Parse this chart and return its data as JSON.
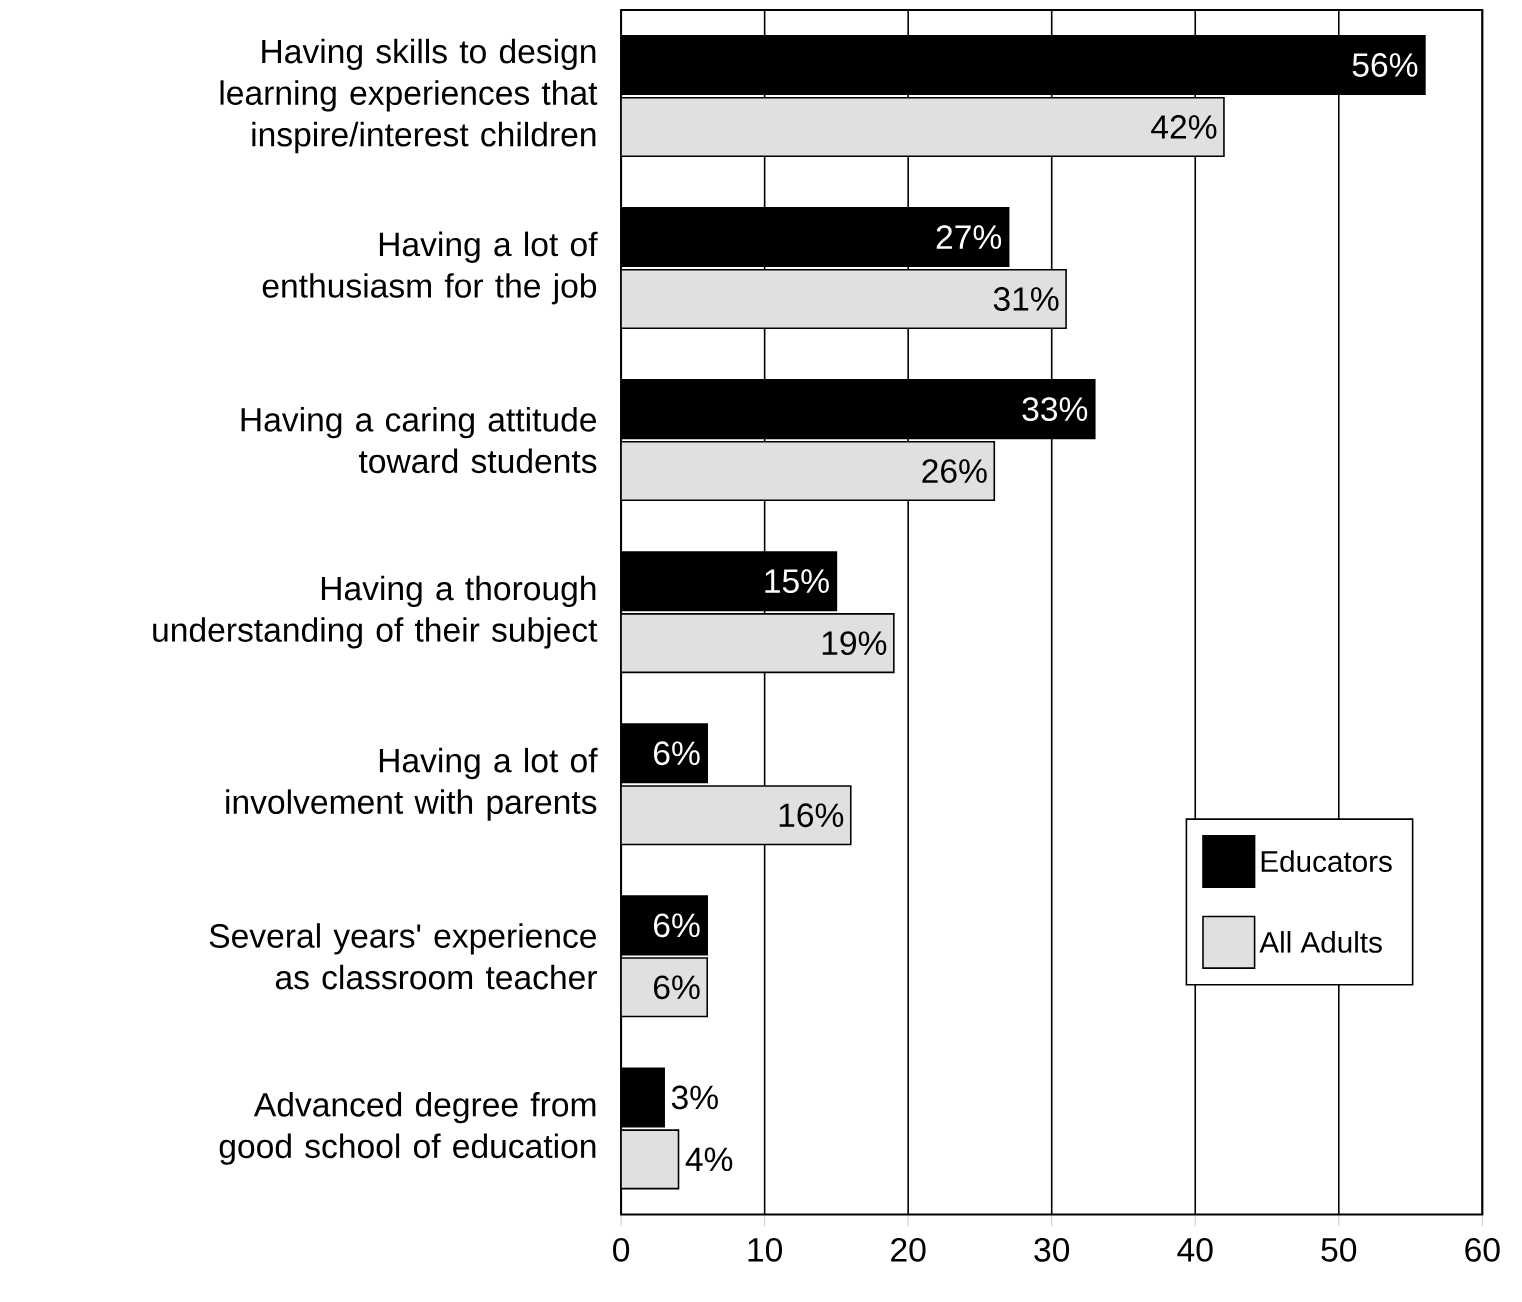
{
  "chart_data": {
    "type": "bar",
    "orientation": "horizontal",
    "categories": [
      "Having skills to design learning experiences that inspire/interest children",
      "Having a lot of enthusiasm for the job",
      "Having a caring attitude toward students",
      "Having a thorough understanding of their subject",
      "Having a lot of involvement with parents",
      "Several years' experience as classroom teacher",
      "Advanced degree from good school of education"
    ],
    "series": [
      {
        "name": "Educators",
        "color": "#000000",
        "values": [
          56,
          27,
          33,
          15,
          6,
          6,
          3
        ],
        "value_labels": [
          "56%",
          "27%",
          "33%",
          "15%",
          "6%",
          "6%",
          "3%"
        ]
      },
      {
        "name": "All Adults",
        "color": "#e0e0e0",
        "values": [
          42,
          31,
          26,
          19,
          16,
          6,
          4
        ],
        "value_labels": [
          "42%",
          "31%",
          "26%",
          "19%",
          "16%",
          "6%",
          "4%"
        ]
      }
    ],
    "xlim": [
      0,
      60
    ],
    "xticks": [
      0,
      10,
      20,
      30,
      40,
      50,
      60
    ],
    "grid": "x",
    "legend": "bottom right"
  }
}
